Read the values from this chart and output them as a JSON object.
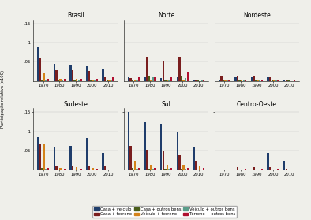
{
  "regions": [
    "Brasil",
    "Norte",
    "Nordeste",
    "Sudeste",
    "Sul",
    "Centro-Oeste"
  ],
  "years": [
    1970,
    1980,
    1990,
    2000,
    2010
  ],
  "series_names": [
    "Casa + veículo",
    "Casa + terreno",
    "Casa + outros bens",
    "Veículo + terreno",
    "Veículo + outros bens",
    "Terreno + outros bens"
  ],
  "series_colors": [
    "#1f3d6b",
    "#7a1e1e",
    "#4a5e1a",
    "#d4821a",
    "#5a9e8a",
    "#b01030"
  ],
  "data": {
    "Brasil": [
      [
        0.09,
        0.045,
        0.04,
        0.038,
        0.033
      ],
      [
        0.058,
        0.028,
        0.028,
        0.026,
        0.009
      ],
      [
        0.004,
        0.002,
        0.002,
        0.002,
        0.001
      ],
      [
        0.022,
        0.005,
        0.005,
        0.003,
        0.001
      ],
      [
        0.002,
        0.002,
        0.002,
        0.001,
        0.001
      ],
      [
        0.005,
        0.005,
        0.005,
        0.005,
        0.009
      ]
    ],
    "Norte": [
      [
        0.009,
        0.009,
        0.008,
        0.009,
        0.002
      ],
      [
        0.008,
        0.063,
        0.052,
        0.063,
        0.004
      ],
      [
        0.004,
        0.014,
        0.004,
        0.014,
        0.001
      ],
      [
        0.001,
        0.001,
        0.001,
        0.001,
        0.0003
      ],
      [
        0.002,
        0.009,
        0.004,
        0.007,
        0.001
      ],
      [
        0.009,
        0.009,
        0.009,
        0.024,
        0.001
      ]
    ],
    "Nordeste": [
      [
        0.004,
        0.009,
        0.009,
        0.009,
        0.001
      ],
      [
        0.013,
        0.013,
        0.013,
        0.009,
        0.002
      ],
      [
        0.004,
        0.004,
        0.004,
        0.003,
        0.001
      ],
      [
        0.001,
        0.001,
        0.001,
        0.001,
        0.0001
      ],
      [
        0.002,
        0.002,
        0.002,
        0.002,
        0.0005
      ],
      [
        0.004,
        0.004,
        0.004,
        0.003,
        0.001
      ]
    ],
    "Sudeste": [
      [
        0.085,
        0.058,
        0.063,
        0.083,
        0.043
      ],
      [
        0.068,
        0.009,
        0.009,
        0.009,
        0.009
      ],
      [
        0.004,
        0.001,
        0.001,
        0.001,
        0.001
      ],
      [
        0.068,
        0.004,
        0.007,
        0.004,
        0.001
      ],
      [
        0.002,
        0.001,
        0.001,
        0.001,
        0.001
      ],
      [
        0.004,
        0.002,
        0.002,
        0.002,
        0.001
      ]
    ],
    "Sul": [
      [
        0.15,
        0.123,
        0.119,
        0.099,
        0.059
      ],
      [
        0.063,
        0.053,
        0.048,
        0.038,
        0.023
      ],
      [
        0.004,
        0.002,
        0.002,
        0.002,
        0.001
      ],
      [
        0.023,
        0.013,
        0.013,
        0.013,
        0.009
      ],
      [
        0.002,
        0.002,
        0.002,
        0.002,
        0.001
      ],
      [
        0.004,
        0.004,
        0.004,
        0.004,
        0.004
      ]
    ],
    "Centro-Oeste": [
      [
        0.0,
        0.0,
        0.0,
        0.043,
        0.023
      ],
      [
        0.0,
        0.007,
        0.007,
        0.006,
        0.002
      ],
      [
        0.0,
        0.001,
        0.001,
        0.001,
        0.0004
      ],
      [
        0.0,
        0.0,
        0.0,
        0.0,
        0.0
      ],
      [
        0.0,
        0.001,
        0.001,
        0.001,
        0.0004
      ],
      [
        0.0,
        0.002,
        0.002,
        0.002,
        0.001
      ]
    ]
  },
  "background_color": "#efefea",
  "ylabel": "Participação relativa (x100)",
  "yticks": [
    0.05,
    0.1,
    0.15
  ],
  "ytick_labels": [
    ".05",
    ".1",
    ".15"
  ],
  "ylim": 0.16
}
